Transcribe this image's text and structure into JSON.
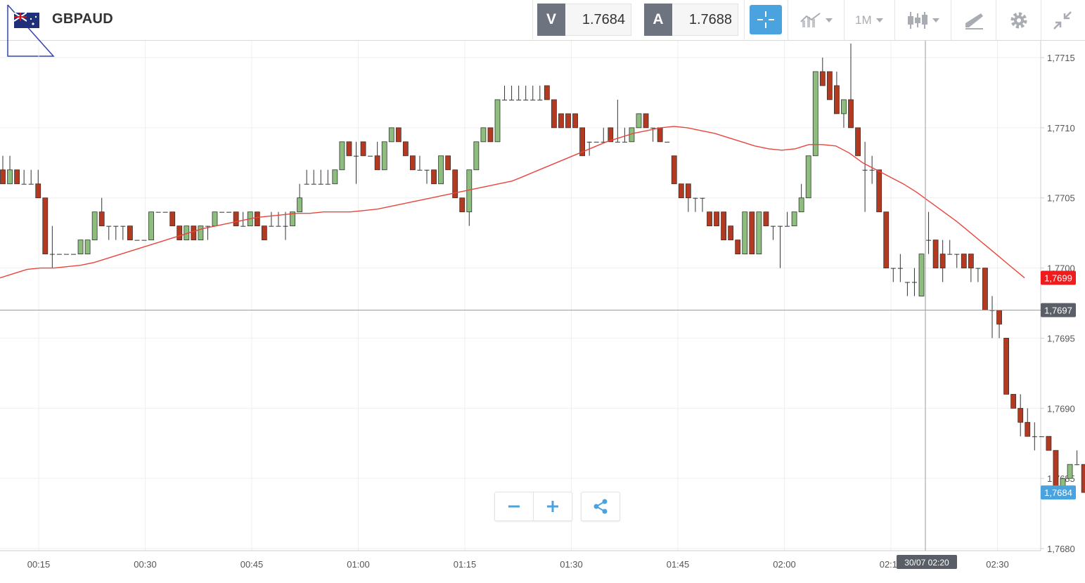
{
  "header": {
    "symbol": "GBPAUD",
    "sell_label": "V",
    "sell_price": "1.7684",
    "buy_label": "A",
    "buy_price": "1.7688",
    "timeframe": "1M",
    "accent_color": "#4aa3df"
  },
  "chart_data": {
    "type": "candlestick",
    "ylim": [
      1.768,
      1.7718
    ],
    "y_ticks": [
      "1,7715",
      "1,7710",
      "1,7705",
      "1,7700",
      "1,7695",
      "1,7690",
      "1,7685",
      "1,7680"
    ],
    "x_ticks": [
      "00:15",
      "00:30",
      "00:45",
      "01:00",
      "01:15",
      "01:30",
      "01:45",
      "02:00",
      "02:15",
      "02:30"
    ],
    "price_tags": {
      "ma_value": "1,7699",
      "crosshair_value": "1,7697",
      "last_value": "1,7684"
    },
    "crosshair_time": "30/07 02:20",
    "colors": {
      "up": "#8dbe7e",
      "down": "#b33a20",
      "ma": "#e8453c",
      "ma_tag": "#ee1c1c",
      "crosshair_tag": "#5a5e66",
      "last_tag": "#4aa3df"
    },
    "candles": [
      [
        1.7707,
        1.7708,
        1.7706,
        1.7706
      ],
      [
        1.7706,
        1.7708,
        1.7706,
        1.7707
      ],
      [
        1.7707,
        1.7707,
        1.7706,
        1.7706
      ],
      [
        1.7706,
        1.7707,
        1.7706,
        1.7706
      ],
      [
        1.7706,
        1.7707,
        1.7706,
        1.7706
      ],
      [
        1.7706,
        1.7707,
        1.7705,
        1.7705
      ],
      [
        1.7705,
        1.7705,
        1.7701,
        1.7701
      ],
      [
        1.7701,
        1.7703,
        1.77,
        1.7701
      ],
      [
        1.7701,
        1.7701,
        1.7701,
        1.7701
      ],
      [
        1.7701,
        1.7701,
        1.7701,
        1.7701
      ],
      [
        1.7701,
        1.7701,
        1.7701,
        1.7701
      ],
      [
        1.7701,
        1.7702,
        1.7701,
        1.7702
      ],
      [
        1.7701,
        1.7702,
        1.7701,
        1.7702
      ],
      [
        1.7702,
        1.7704,
        1.7702,
        1.7704
      ],
      [
        1.7704,
        1.7705,
        1.7703,
        1.7703
      ],
      [
        1.7703,
        1.7703,
        1.7702,
        1.7703
      ],
      [
        1.7703,
        1.7703,
        1.7702,
        1.7703
      ],
      [
        1.7703,
        1.7703,
        1.7702,
        1.7703
      ],
      [
        1.7703,
        1.7703,
        1.7702,
        1.7702
      ],
      [
        1.7702,
        1.7702,
        1.7702,
        1.7702
      ],
      [
        1.7702,
        1.7702,
        1.7702,
        1.7702
      ],
      [
        1.7702,
        1.7704,
        1.7702,
        1.7704
      ],
      [
        1.7704,
        1.7704,
        1.7704,
        1.7704
      ],
      [
        1.7704,
        1.7704,
        1.7704,
        1.7704
      ],
      [
        1.7704,
        1.7704,
        1.7703,
        1.7703
      ],
      [
        1.7703,
        1.7703,
        1.7702,
        1.7702
      ],
      [
        1.7702,
        1.7703,
        1.7702,
        1.7703
      ],
      [
        1.7703,
        1.7703,
        1.7702,
        1.7702
      ],
      [
        1.7702,
        1.7703,
        1.7702,
        1.7703
      ],
      [
        1.7703,
        1.7703,
        1.7702,
        1.7703
      ],
      [
        1.7703,
        1.7704,
        1.7703,
        1.7704
      ],
      [
        1.7704,
        1.7704,
        1.7704,
        1.7704
      ],
      [
        1.7704,
        1.7704,
        1.7704,
        1.7704
      ],
      [
        1.7704,
        1.7704,
        1.7703,
        1.7703
      ],
      [
        1.7703,
        1.7704,
        1.7703,
        1.7703
      ],
      [
        1.7703,
        1.7704,
        1.7703,
        1.7704
      ],
      [
        1.7704,
        1.7704,
        1.7703,
        1.7703
      ],
      [
        1.7703,
        1.7703,
        1.7702,
        1.7702
      ],
      [
        1.7703,
        1.7704,
        1.7703,
        1.7703
      ],
      [
        1.7703,
        1.7704,
        1.7703,
        1.7703
      ],
      [
        1.7703,
        1.7704,
        1.7702,
        1.7703
      ],
      [
        1.7703,
        1.7704,
        1.7703,
        1.7704
      ],
      [
        1.7704,
        1.7706,
        1.7704,
        1.7705
      ],
      [
        1.7706,
        1.7707,
        1.7706,
        1.7706
      ],
      [
        1.7706,
        1.7707,
        1.7706,
        1.7706
      ],
      [
        1.7706,
        1.7707,
        1.7706,
        1.7706
      ],
      [
        1.7706,
        1.7707,
        1.7706,
        1.7706
      ],
      [
        1.7706,
        1.7707,
        1.7706,
        1.7707
      ],
      [
        1.7707,
        1.7709,
        1.7707,
        1.7709
      ],
      [
        1.7709,
        1.7709,
        1.7708,
        1.7708
      ],
      [
        1.7708,
        1.7709,
        1.7706,
        1.7708
      ],
      [
        1.7709,
        1.7709,
        1.7708,
        1.7708
      ],
      [
        1.7708,
        1.7708,
        1.7708,
        1.7708
      ],
      [
        1.7708,
        1.7709,
        1.7707,
        1.7707
      ],
      [
        1.7707,
        1.7709,
        1.7707,
        1.7709
      ],
      [
        1.7709,
        1.771,
        1.7709,
        1.771
      ],
      [
        1.771,
        1.771,
        1.7709,
        1.7709
      ],
      [
        1.7709,
        1.7709,
        1.7708,
        1.7708
      ],
      [
        1.7708,
        1.7708,
        1.7707,
        1.7707
      ],
      [
        1.7707,
        1.7708,
        1.7707,
        1.7707
      ],
      [
        1.7707,
        1.7707,
        1.7706,
        1.7707
      ],
      [
        1.7707,
        1.7707,
        1.7706,
        1.7706
      ],
      [
        1.7706,
        1.7708,
        1.7706,
        1.7708
      ],
      [
        1.7708,
        1.7708,
        1.7707,
        1.7707
      ],
      [
        1.7707,
        1.7707,
        1.7705,
        1.7705
      ],
      [
        1.7705,
        1.7705,
        1.7704,
        1.7704
      ],
      [
        1.7704,
        1.7707,
        1.7703,
        1.7707
      ],
      [
        1.7707,
        1.7709,
        1.7707,
        1.7709
      ],
      [
        1.7709,
        1.771,
        1.7709,
        1.771
      ],
      [
        1.771,
        1.771,
        1.7709,
        1.7709
      ],
      [
        1.7709,
        1.7712,
        1.7709,
        1.7712
      ],
      [
        1.7712,
        1.7713,
        1.7712,
        1.7712
      ],
      [
        1.7712,
        1.7713,
        1.7712,
        1.7712
      ],
      [
        1.7712,
        1.7713,
        1.7712,
        1.7712
      ],
      [
        1.7712,
        1.7713,
        1.7712,
        1.7712
      ],
      [
        1.7712,
        1.7713,
        1.7712,
        1.7712
      ],
      [
        1.7712,
        1.7713,
        1.7712,
        1.7712
      ],
      [
        1.7713,
        1.7713,
        1.7712,
        1.7712
      ],
      [
        1.7712,
        1.7712,
        1.771,
        1.771
      ],
      [
        1.7711,
        1.7711,
        1.771,
        1.771
      ],
      [
        1.7711,
        1.7711,
        1.771,
        1.771
      ],
      [
        1.7711,
        1.7711,
        1.771,
        1.771
      ],
      [
        1.771,
        1.771,
        1.7708,
        1.7708
      ],
      [
        1.7709,
        1.7709,
        1.7708,
        1.7709
      ],
      [
        1.7709,
        1.7709,
        1.7709,
        1.7709
      ],
      [
        1.7709,
        1.771,
        1.7709,
        1.7709
      ],
      [
        1.771,
        1.771,
        1.7709,
        1.7709
      ],
      [
        1.7709,
        1.7712,
        1.7709,
        1.7709
      ],
      [
        1.7709,
        1.771,
        1.7709,
        1.7709
      ],
      [
        1.7709,
        1.771,
        1.7709,
        1.771
      ],
      [
        1.771,
        1.7711,
        1.771,
        1.7711
      ],
      [
        1.7711,
        1.7711,
        1.771,
        1.771
      ],
      [
        1.771,
        1.771,
        1.7709,
        1.771
      ],
      [
        1.771,
        1.771,
        1.7709,
        1.7709
      ],
      [
        1.7709,
        1.7709,
        1.7709,
        1.7709
      ],
      [
        1.7708,
        1.7708,
        1.7706,
        1.7706
      ],
      [
        1.7706,
        1.7706,
        1.7705,
        1.7705
      ],
      [
        1.7706,
        1.7706,
        1.7704,
        1.7705
      ],
      [
        1.7705,
        1.7705,
        1.7704,
        1.7705
      ],
      [
        1.7705,
        1.7705,
        1.7704,
        1.7705
      ],
      [
        1.7704,
        1.7704,
        1.7703,
        1.7703
      ],
      [
        1.7704,
        1.7704,
        1.7703,
        1.7703
      ],
      [
        1.7704,
        1.7704,
        1.7702,
        1.7702
      ],
      [
        1.7703,
        1.7703,
        1.7702,
        1.7702
      ],
      [
        1.7702,
        1.7702,
        1.7701,
        1.7701
      ],
      [
        1.7701,
        1.7704,
        1.7701,
        1.7704
      ],
      [
        1.7704,
        1.7704,
        1.7701,
        1.7701
      ],
      [
        1.7701,
        1.7704,
        1.7701,
        1.7704
      ],
      [
        1.7704,
        1.7704,
        1.7703,
        1.7703
      ],
      [
        1.7703,
        1.7703,
        1.7702,
        1.7703
      ],
      [
        1.7703,
        1.7703,
        1.77,
        1.7703
      ],
      [
        1.7703,
        1.7704,
        1.7703,
        1.7703
      ],
      [
        1.7703,
        1.7704,
        1.7703,
        1.7704
      ],
      [
        1.7704,
        1.7706,
        1.7704,
        1.7705
      ],
      [
        1.7705,
        1.7708,
        1.7705,
        1.7708
      ],
      [
        1.7708,
        1.7714,
        1.7708,
        1.7714
      ],
      [
        1.7714,
        1.7715,
        1.7713,
        1.7713
      ],
      [
        1.7714,
        1.7714,
        1.7712,
        1.7712
      ],
      [
        1.7713,
        1.7714,
        1.7711,
        1.7711
      ],
      [
        1.7711,
        1.7712,
        1.771,
        1.7712
      ],
      [
        1.7712,
        1.7716,
        1.771,
        1.771
      ],
      [
        1.771,
        1.771,
        1.7708,
        1.7708
      ],
      [
        1.7707,
        1.7709,
        1.7704,
        1.7707
      ],
      [
        1.7707,
        1.7708,
        1.7706,
        1.7707
      ],
      [
        1.7707,
        1.7707,
        1.7704,
        1.7704
      ],
      [
        1.7704,
        1.7704,
        1.77,
        1.77
      ],
      [
        1.77,
        1.77,
        1.7699,
        1.77
      ],
      [
        1.77,
        1.7701,
        1.7699,
        1.77
      ],
      [
        1.7699,
        1.7699,
        1.7698,
        1.7699
      ],
      [
        1.7699,
        1.77,
        1.7698,
        1.7699
      ],
      [
        1.7698,
        1.7701,
        1.7698,
        1.7701
      ],
      [
        1.7702,
        1.7704,
        1.7701,
        1.7702
      ],
      [
        1.7702,
        1.7702,
        1.77,
        1.77
      ],
      [
        1.7701,
        1.7702,
        1.7699,
        1.77
      ],
      [
        1.7701,
        1.7702,
        1.7701,
        1.7701
      ],
      [
        1.7701,
        1.7701,
        1.77,
        1.7701
      ],
      [
        1.7701,
        1.7701,
        1.77,
        1.77
      ],
      [
        1.7701,
        1.7701,
        1.7699,
        1.77
      ],
      [
        1.77,
        1.77,
        1.7699,
        1.77
      ],
      [
        1.77,
        1.77,
        1.7697,
        1.7697
      ],
      [
        1.7697,
        1.7698,
        1.7695,
        1.7697
      ],
      [
        1.7697,
        1.7697,
        1.7695,
        1.7696
      ],
      [
        1.7695,
        1.7695,
        1.7691,
        1.7691
      ],
      [
        1.7691,
        1.7691,
        1.769,
        1.769
      ],
      [
        1.769,
        1.7691,
        1.7688,
        1.7689
      ],
      [
        1.7689,
        1.769,
        1.7688,
        1.7688
      ],
      [
        1.7688,
        1.7689,
        1.7687,
        1.7688
      ],
      [
        1.7688,
        1.7688,
        1.7688,
        1.7688
      ],
      [
        1.7688,
        1.7688,
        1.7687,
        1.7687
      ],
      [
        1.7687,
        1.7687,
        1.7684,
        1.7684
      ],
      [
        1.7684,
        1.7685,
        1.7684,
        1.7685
      ],
      [
        1.7685,
        1.7686,
        1.7685,
        1.7686
      ],
      [
        1.7686,
        1.7687,
        1.7686,
        1.7686
      ],
      [
        1.7686,
        1.7686,
        1.7684,
        1.7684
      ],
      [
        1.7684,
        1.7685,
        1.7684,
        1.7684
      ]
    ],
    "ma_series": [
      1.76993,
      1.76996,
      1.76999,
      1.77,
      1.77,
      1.77001,
      1.77002,
      1.77004,
      1.77007,
      1.7701,
      1.77013,
      1.77016,
      1.77019,
      1.77022,
      1.77025,
      1.77028,
      1.7703,
      1.77032,
      1.77034,
      1.77036,
      1.77037,
      1.77038,
      1.77039,
      1.77039,
      1.7704,
      1.7704,
      1.7704,
      1.77041,
      1.77042,
      1.77044,
      1.77046,
      1.77048,
      1.7705,
      1.77052,
      1.77054,
      1.77056,
      1.77058,
      1.7706,
      1.77062,
      1.77066,
      1.7707,
      1.77074,
      1.77078,
      1.77082,
      1.77086,
      1.7709,
      1.77093,
      1.77096,
      1.77098,
      1.771,
      1.77101,
      1.771,
      1.77098,
      1.77096,
      1.77093,
      1.7709,
      1.77087,
      1.77085,
      1.77084,
      1.77085,
      1.77088,
      1.77088,
      1.77087,
      1.77082,
      1.77075,
      1.7707,
      1.77065,
      1.7706,
      1.77054,
      1.77047,
      1.7704,
      1.77033,
      1.77025,
      1.77017,
      1.77009,
      1.77001,
      1.76993
    ]
  }
}
